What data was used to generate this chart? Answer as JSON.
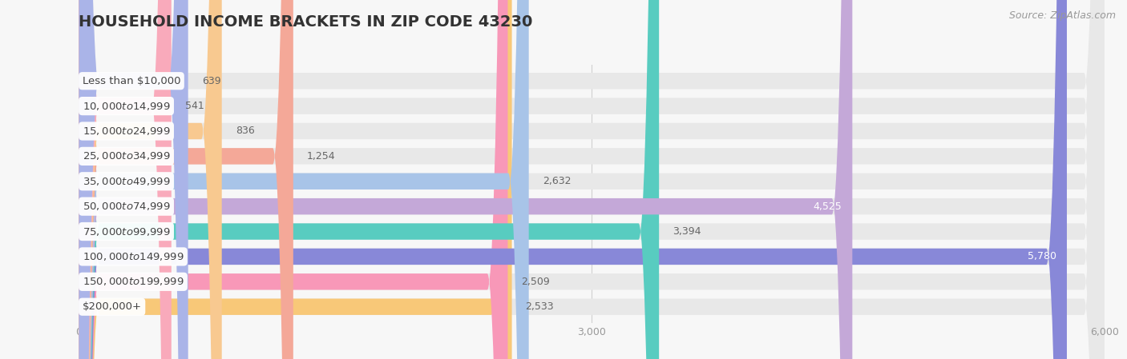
{
  "title": "HOUSEHOLD INCOME BRACKETS IN ZIP CODE 43230",
  "source": "Source: ZipAtlas.com",
  "categories": [
    "Less than $10,000",
    "$10,000 to $14,999",
    "$15,000 to $24,999",
    "$25,000 to $34,999",
    "$35,000 to $49,999",
    "$50,000 to $74,999",
    "$75,000 to $99,999",
    "$100,000 to $149,999",
    "$150,000 to $199,999",
    "$200,000+"
  ],
  "values": [
    639,
    541,
    836,
    1254,
    2632,
    4525,
    3394,
    5780,
    2509,
    2533
  ],
  "bar_colors": [
    "#aab4e8",
    "#f9aabb",
    "#f8c990",
    "#f4a898",
    "#a8c4e8",
    "#c4a8d8",
    "#58ccc0",
    "#8888d8",
    "#f898b8",
    "#f8c878"
  ],
  "xlim": [
    0,
    6000
  ],
  "xticks": [
    0,
    3000,
    6000
  ],
  "xtick_labels": [
    "0",
    "3,000",
    "6,000"
  ],
  "bg_color": "#f7f7f7",
  "bar_bg_color": "#e8e8e8",
  "label_bg_color": "#ffffff",
  "title_fontsize": 14,
  "label_fontsize": 9.5,
  "value_fontsize": 9,
  "source_fontsize": 9,
  "bar_height": 0.65,
  "bar_gap": 1.0
}
